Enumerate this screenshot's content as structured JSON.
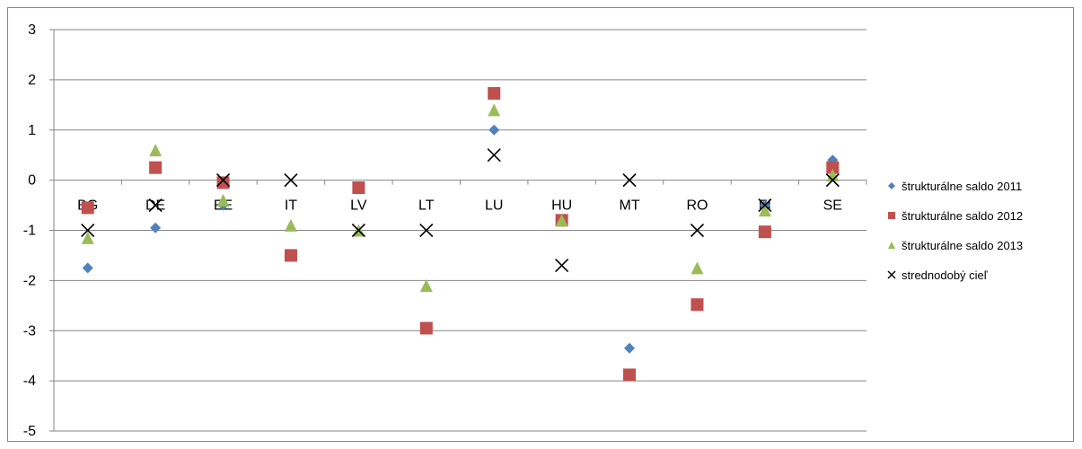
{
  "chart_data": {
    "type": "scatter",
    "title": "",
    "xlabel": "",
    "ylabel": "",
    "ylim": [
      -5,
      3
    ],
    "yticks": [
      3,
      2,
      1,
      0,
      -1,
      -2,
      -3,
      -4,
      -5
    ],
    "grid": "horizontal",
    "legend_position": "right",
    "categories": [
      "BG",
      "DE",
      "EE",
      "IT",
      "LV",
      "LT",
      "LU",
      "HU",
      "MT",
      "RO",
      "FI",
      "SE"
    ],
    "series": [
      {
        "name": "štrukturálne saldo 2011",
        "marker": "diamond",
        "color": "#4F81BD",
        "values": [
          -1.75,
          -0.95,
          -0.5,
          null,
          null,
          null,
          1.0,
          null,
          -3.35,
          null,
          -0.5,
          0.4
        ]
      },
      {
        "name": "štrukturálne saldo 2012",
        "marker": "square",
        "color": "#C0504D",
        "values": [
          -0.55,
          0.25,
          -0.05,
          -1.5,
          -0.15,
          -2.95,
          1.73,
          -0.8,
          -3.88,
          -2.48,
          -1.03,
          0.25
        ]
      },
      {
        "name": "štrukturálne saldo 2013",
        "marker": "triangle",
        "color": "#9BBB59",
        "values": [
          -1.15,
          0.6,
          -0.4,
          -0.9,
          -1.0,
          -2.1,
          1.4,
          -0.8,
          null,
          -1.75,
          -0.6,
          0.1
        ]
      },
      {
        "name": "strednodobý cieľ",
        "marker": "x",
        "color": "#000000",
        "values": [
          -1.0,
          -0.5,
          0.0,
          0.0,
          -1.0,
          -1.0,
          0.5,
          -1.7,
          0.0,
          -1.0,
          -0.5,
          0.0
        ]
      }
    ]
  }
}
